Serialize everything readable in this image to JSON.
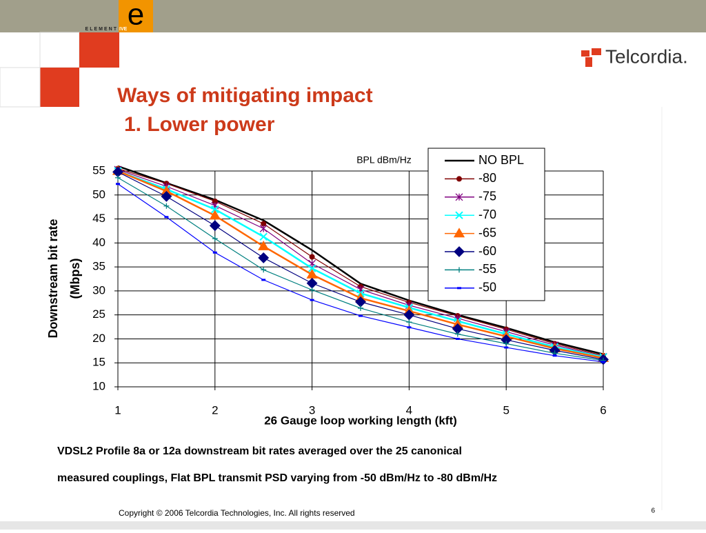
{
  "header": {
    "logo_letter": "e",
    "logo_word_left": "ELEMENT",
    "logo_word_right": "IVE",
    "brand": "Telcordia."
  },
  "title_lines": [
    "Ways of mitigating impact",
    "1. Lower power"
  ],
  "chart_data": {
    "type": "line",
    "legend_title": "BPL dBm/Hz",
    "xlabel": "26 Gauge loop working length (kft)",
    "ylabel_lines": [
      "Downstream bit rate",
      "(Mbps)"
    ],
    "x": [
      1,
      1.5,
      2,
      2.5,
      3,
      3.5,
      4,
      4.5,
      5,
      5.5,
      6
    ],
    "xlim": [
      1,
      6
    ],
    "xticks": [
      1,
      2,
      3,
      4,
      5,
      6
    ],
    "ylim": [
      10,
      55
    ],
    "yticks": [
      10,
      15,
      20,
      25,
      30,
      35,
      40,
      45,
      50,
      55
    ],
    "grid": true,
    "legend": "upper right",
    "series": [
      {
        "name": "NO BPL",
        "color": "#000000",
        "marker": "none",
        "values": [
          56,
          52.5,
          49,
          44.7,
          38.5,
          31.5,
          28,
          25,
          22.3,
          19.3,
          16.8
        ]
      },
      {
        "name": "-80",
        "color": "#800000",
        "marker": "circle",
        "values": [
          55.5,
          52.4,
          48.7,
          44,
          37.1,
          30.9,
          27.6,
          24.8,
          22,
          19,
          16.5
        ]
      },
      {
        "name": "-75",
        "color": "#800080",
        "marker": "asterisk",
        "values": [
          55.3,
          51.8,
          47.8,
          43,
          35.7,
          30.3,
          27,
          24.3,
          21.5,
          18.7,
          16.3
        ]
      },
      {
        "name": "-70",
        "color": "#00ffff",
        "marker": "x",
        "values": [
          55,
          51.2,
          47,
          41.3,
          34.7,
          29.5,
          26.5,
          23.7,
          21,
          18.3,
          16.2
        ]
      },
      {
        "name": "-65",
        "color": "#ff6600",
        "marker": "triangle",
        "values": [
          55,
          50.8,
          45.7,
          39.3,
          33.4,
          28.5,
          25.8,
          23,
          20.5,
          18,
          16
        ]
      },
      {
        "name": "-60",
        "color": "#000080",
        "marker": "diamond",
        "values": [
          54.8,
          49.7,
          43.6,
          36.9,
          31.6,
          27.7,
          25,
          22.1,
          19.8,
          17.6,
          15.7
        ]
      },
      {
        "name": "-55",
        "color": "#008080",
        "marker": "plus",
        "values": [
          53.6,
          47.7,
          40.9,
          34.4,
          30.2,
          26.4,
          23.5,
          21,
          19,
          17,
          15.5
        ]
      },
      {
        "name": "-50",
        "color": "#0000ff",
        "marker": "dash",
        "values": [
          52.3,
          45.4,
          38,
          32.3,
          28.1,
          24.8,
          22.4,
          20,
          18.2,
          16.5,
          15.2
        ]
      }
    ]
  },
  "caption_lines": [
    "VDSL2 Profile 8a or 12a downstream bit rates averaged over the 25 canonical",
    "measured couplings, Flat BPL transmit PSD varying from -50 dBm/Hz to -80 dBm/Hz"
  ],
  "footer": {
    "copyright": "Copyright © 2006 Telcordia Technologies, Inc. All rights reserved",
    "page": "6"
  }
}
